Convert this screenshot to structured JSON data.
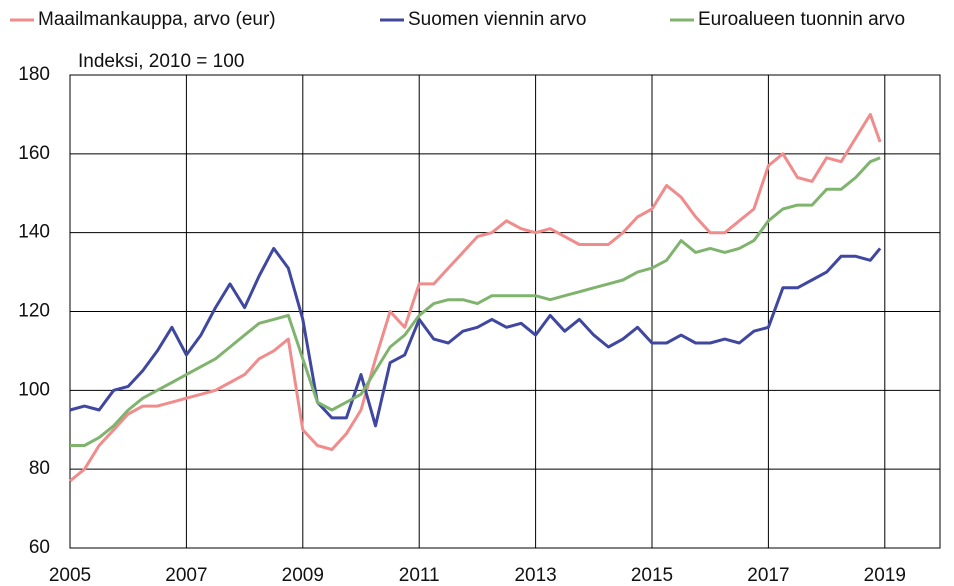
{
  "chart_data": {
    "type": "line",
    "annotation": "Indeksi, 2010 = 100",
    "x": [
      2005.0,
      2005.25,
      2005.5,
      2005.75,
      2006.0,
      2006.25,
      2006.5,
      2006.75,
      2007.0,
      2007.25,
      2007.5,
      2007.75,
      2008.0,
      2008.25,
      2008.5,
      2008.75,
      2009.0,
      2009.25,
      2009.5,
      2009.75,
      2010.0,
      2010.25,
      2010.5,
      2010.75,
      2011.0,
      2011.25,
      2011.5,
      2011.75,
      2012.0,
      2012.25,
      2012.5,
      2012.75,
      2013.0,
      2013.25,
      2013.5,
      2013.75,
      2014.0,
      2014.25,
      2014.5,
      2014.75,
      2015.0,
      2015.25,
      2015.5,
      2015.75,
      2016.0,
      2016.25,
      2016.5,
      2016.75,
      2017.0,
      2017.25,
      2017.5,
      2017.75,
      2018.0,
      2018.25,
      2018.5,
      2018.75,
      2018.92
    ],
    "series": [
      {
        "name": "Maailmankauppa, arvo (eur)",
        "color": "#f08c8c",
        "values": [
          77,
          80,
          86,
          90,
          94,
          96,
          96,
          97,
          98,
          99,
          100,
          102,
          104,
          108,
          110,
          113,
          90,
          86,
          85,
          89,
          95,
          108,
          120,
          116,
          127,
          127,
          131,
          135,
          139,
          140,
          143,
          141,
          140,
          141,
          139,
          137,
          137,
          137,
          140,
          144,
          146,
          152,
          149,
          144,
          140,
          140,
          143,
          146,
          157,
          160,
          154,
          153,
          159,
          158,
          164,
          170,
          163
        ]
      },
      {
        "name": "Suomen viennin arvo",
        "color": "#3f47a0",
        "values": [
          95,
          96,
          95,
          100,
          101,
          105,
          110,
          116,
          109,
          114,
          121,
          127,
          121,
          129,
          136,
          131,
          118,
          97,
          93,
          93,
          104,
          91,
          107,
          109,
          118,
          113,
          112,
          115,
          116,
          118,
          116,
          117,
          114,
          119,
          115,
          118,
          114,
          111,
          113,
          116,
          112,
          112,
          114,
          112,
          112,
          113,
          112,
          115,
          116,
          126,
          126,
          128,
          130,
          134,
          134,
          133,
          136
        ]
      },
      {
        "name": "Euroalueen tuonnin arvo",
        "color": "#80b46e",
        "values": [
          86,
          86,
          88,
          91,
          95,
          98,
          100,
          102,
          104,
          106,
          108,
          111,
          114,
          117,
          118,
          119,
          108,
          97,
          95,
          97,
          99,
          105,
          111,
          114,
          119,
          122,
          123,
          123,
          122,
          124,
          124,
          124,
          124,
          123,
          124,
          125,
          126,
          127,
          128,
          130,
          131,
          133,
          138,
          135,
          136,
          135,
          136,
          138,
          143,
          146,
          147,
          147,
          151,
          151,
          154,
          158,
          159
        ]
      }
    ],
    "xlim": [
      2005,
      2020
    ],
    "xticks": [
      2005,
      2007,
      2009,
      2011,
      2013,
      2015,
      2017,
      2019
    ],
    "ylim": [
      60,
      180
    ],
    "yticks": [
      60,
      80,
      100,
      120,
      140,
      160,
      180
    ],
    "grid": true
  }
}
